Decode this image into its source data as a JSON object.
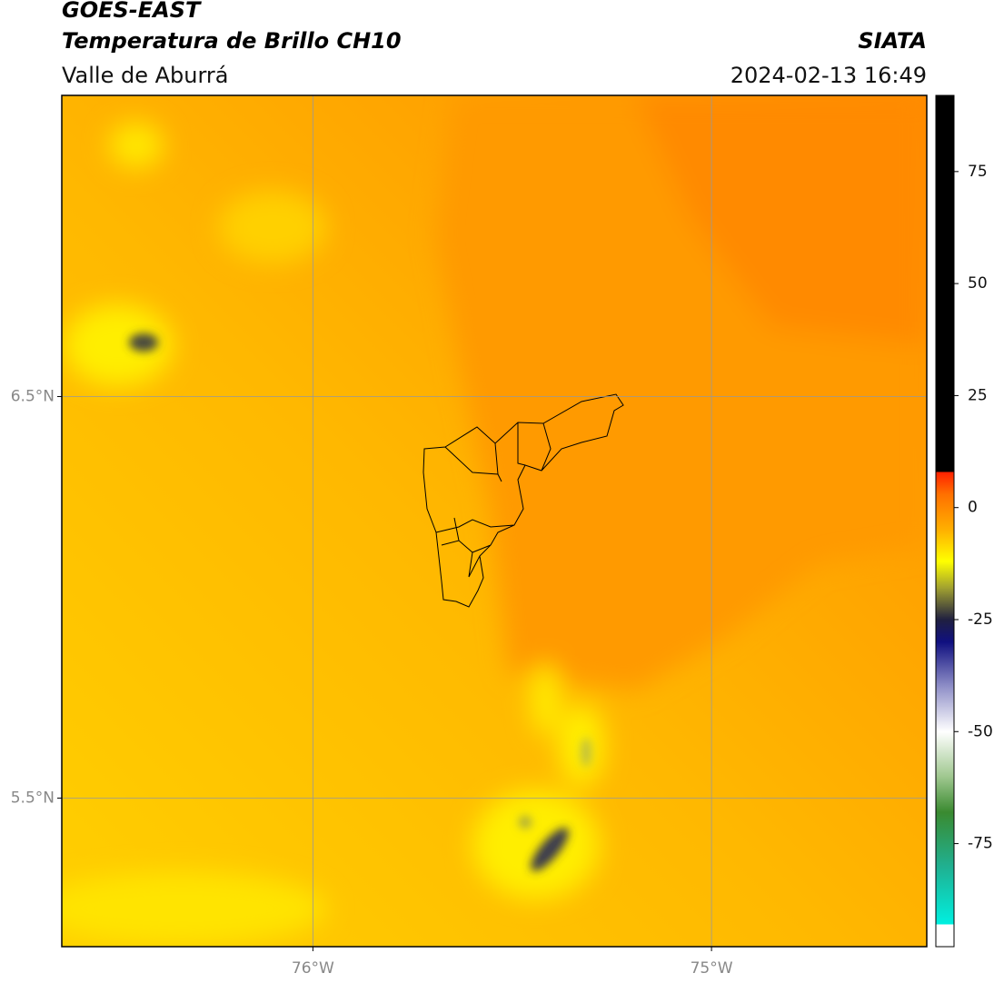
{
  "header": {
    "title": "GOES-EAST",
    "subtitle": "Temperatura de Brillo CH10",
    "source": "SIATA",
    "region": "Valle de Aburrá",
    "timestamp": "2024-02-13 16:49"
  },
  "map": {
    "xlim": [
      -76.63,
      -74.46
    ],
    "ylim": [
      5.13,
      7.25
    ],
    "xticks": [
      {
        "value": -76,
        "label": "76°W"
      },
      {
        "value": -75,
        "label": "75°W"
      }
    ],
    "yticks": [
      {
        "value": 6.5,
        "label": "6.5°N"
      },
      {
        "value": 5.5,
        "label": "5.5°N"
      }
    ],
    "grid": true
  },
  "colorbar": {
    "lim": [
      -98,
      92
    ],
    "ticks": [
      75,
      50,
      25,
      0,
      -25,
      -50,
      -75
    ],
    "stops": [
      {
        "value": -98,
        "color": "#ffffff"
      },
      {
        "value": -93,
        "color": "#ffffff"
      },
      {
        "value": -93,
        "color": "#00f0e0"
      },
      {
        "value": -80,
        "color": "#20b090"
      },
      {
        "value": -68,
        "color": "#3a8a30"
      },
      {
        "value": -60,
        "color": "#a0c890"
      },
      {
        "value": -50,
        "color": "#ffffff"
      },
      {
        "value": -40,
        "color": "#9090c8"
      },
      {
        "value": -30,
        "color": "#101080"
      },
      {
        "value": -25,
        "color": "#202040"
      },
      {
        "value": -18,
        "color": "#a0a030"
      },
      {
        "value": -12,
        "color": "#ffff00"
      },
      {
        "value": -5,
        "color": "#ffb000"
      },
      {
        "value": 3,
        "color": "#ff7000"
      },
      {
        "value": 8,
        "color": "#ff2000"
      },
      {
        "value": 8,
        "color": "#000000"
      },
      {
        "value": 92,
        "color": "#000000"
      }
    ]
  }
}
